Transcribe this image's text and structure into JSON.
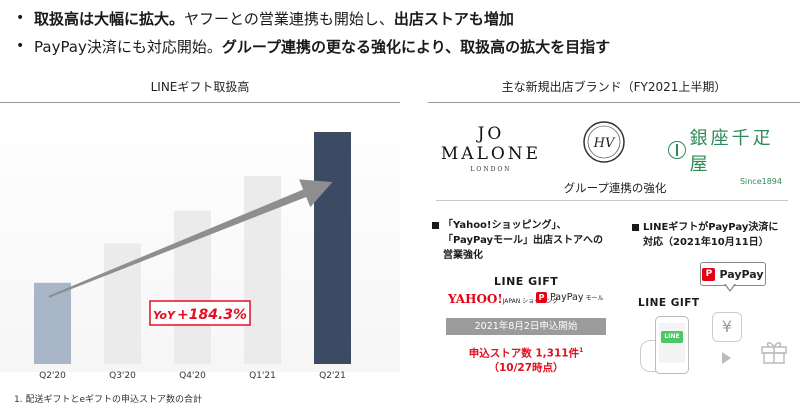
{
  "bullets": [
    {
      "marker": "•",
      "bold": "取扱高は大幅に拡大。",
      "normal": "ヤフーとの営業連携も開始し、",
      "bold2": "出店ストアも増加"
    },
    {
      "marker": "•",
      "normal": "PayPay決済にも対応開始。",
      "bold": "グループ連携の更なる強化により、取扱高の拡大を目指す"
    }
  ],
  "left_header": "LINEギフト取扱高",
  "right_header": "主な新規出店ブランド（FY2021上半期）",
  "chart_data": {
    "type": "bar",
    "title": "LINEギフト取扱高",
    "categories": [
      "Q2'20",
      "Q3'20",
      "Q4'20",
      "Q1'21",
      "Q2'21"
    ],
    "values": [
      35,
      52,
      66,
      81,
      100
    ],
    "ylim": [
      0,
      100
    ],
    "grid": false,
    "colors": [
      "#a9b6c8",
      "#ebebeb",
      "#ebebeb",
      "#ebebeb",
      "#3c4a63"
    ],
    "annotation": {
      "prefix": "YoY",
      "value": "+184.3%",
      "color": "#e01020"
    }
  },
  "brands": {
    "jo_malone": {
      "name": "JO MALONE",
      "sub": "LONDON"
    },
    "hv": {
      "mark": "HV"
    },
    "ginza": {
      "name": "銀座千疋屋",
      "sub": "Since1894"
    }
  },
  "group_title": "グループ連携の強化",
  "point1": {
    "line1": "「Yahoo!ショッピング」、",
    "line2": "「PayPayモール」出店ストアへの",
    "line3": "営業強化"
  },
  "point2": {
    "line1": "LINEギフトがPayPay決済に",
    "line2": "対応（2021年10月11日）"
  },
  "line_gift_logo": "LINE GIFT",
  "yahoo_logo": {
    "main": "YAHOO!",
    "sub": "JAPAN ショッピング"
  },
  "paypay_mall": {
    "icon": "P",
    "main": "PayPay",
    "sub": "モール"
  },
  "date_bar": "2021年8月2日申込開始",
  "stores": {
    "line1": "申込ストア数 1,311件",
    "sup": "1",
    "line2": "（10/27時点）"
  },
  "paypay_bubble": {
    "icon": "P",
    "label": "PayPay"
  },
  "phone_label": "LINE",
  "yen_symbol": "¥",
  "footnote": "1. 配送ギフトとeギフトの申込ストア数の合計",
  "colors": {
    "accent_red": "#e01020",
    "line_green": "#4cc764",
    "ginza_green": "#2e8b57"
  }
}
